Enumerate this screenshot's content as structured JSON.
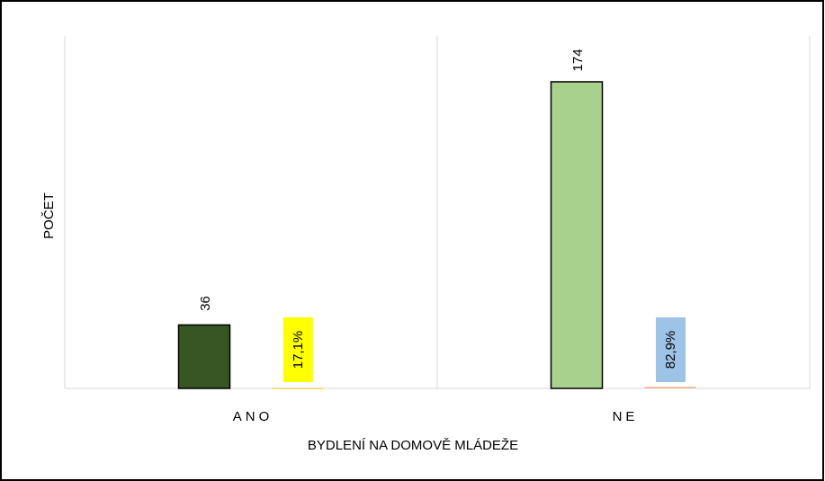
{
  "chart_data": {
    "type": "bar",
    "categories": [
      "ANO",
      "NE"
    ],
    "xlabel": "BYDLENÍ NA DOMOVĚ MLÁDEŽE",
    "ylabel": "POČET",
    "series": [
      {
        "values": [
          36,
          174
        ],
        "colors": [
          "#375623",
          "#a9d18e"
        ],
        "label_background": null
      },
      {
        "values": [
          0.171,
          0.829
        ],
        "value_labels": [
          "17,1%",
          "82,9%"
        ],
        "colors": [
          "#ffc000",
          "#f4b183"
        ],
        "label_backgrounds": [
          "#ffff00",
          "#9dc3e6"
        ]
      }
    ],
    "ylim": [
      0,
      200
    ]
  }
}
